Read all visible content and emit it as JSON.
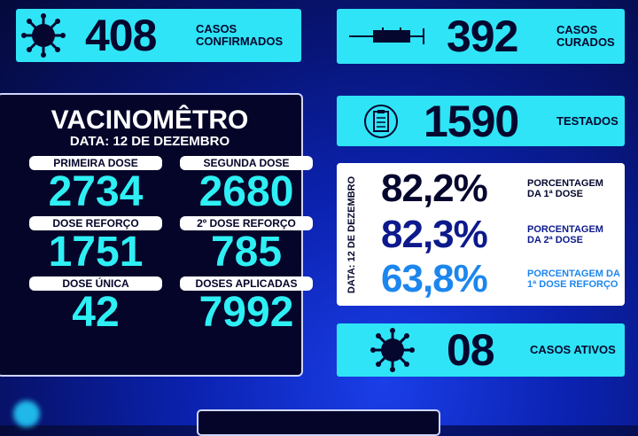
{
  "confirmed": {
    "value": "408",
    "label1": "CASOS",
    "label2": "CONFIRMADOS",
    "icon": "virus-icon"
  },
  "cured": {
    "value": "392",
    "label1": "CASOS",
    "label2": "CURADOS",
    "icon": "syringe-icon"
  },
  "tested": {
    "value": "1590",
    "label": "TESTADOS",
    "icon": "clipboard-icon"
  },
  "active": {
    "value": "08",
    "label": "CASOS ATIVOS",
    "icon": "virus-icon"
  },
  "vacinometro": {
    "title": "VACINOMÊTRO",
    "date": "DATA: 12 DE DEZEMBRO",
    "items": [
      {
        "label": "PRIMEIRA DOSE",
        "value": "2734"
      },
      {
        "label": "SEGUNDA DOSE",
        "value": "2680"
      },
      {
        "label": "DOSE REFORÇO",
        "value": "1751"
      },
      {
        "label": "2º DOSE REFORÇO",
        "value": "785"
      },
      {
        "label": "DOSE ÚNICA",
        "value": "42"
      },
      {
        "label": "DOSES APLICADAS",
        "value": "7992"
      }
    ]
  },
  "percentages": {
    "date": "DATA: 12 DE DEZEMBRO",
    "rows": [
      {
        "value": "82,2%",
        "label1": "PORCENTAGEM",
        "label2": "DA 1ª DOSE",
        "color": "#05072e"
      },
      {
        "value": "82,3%",
        "label1": "PORCENTAGEM",
        "label2": "DA 2ª DOSE",
        "color": "#0d1a8c"
      },
      {
        "value": "63,8%",
        "label1": "PORCENTAGEM DA",
        "label2": "1ª DOSE REFORÇO",
        "color": "#1c86ef"
      }
    ]
  },
  "colors": {
    "cyan": "#2fe4f6",
    "navy": "#05052a"
  }
}
